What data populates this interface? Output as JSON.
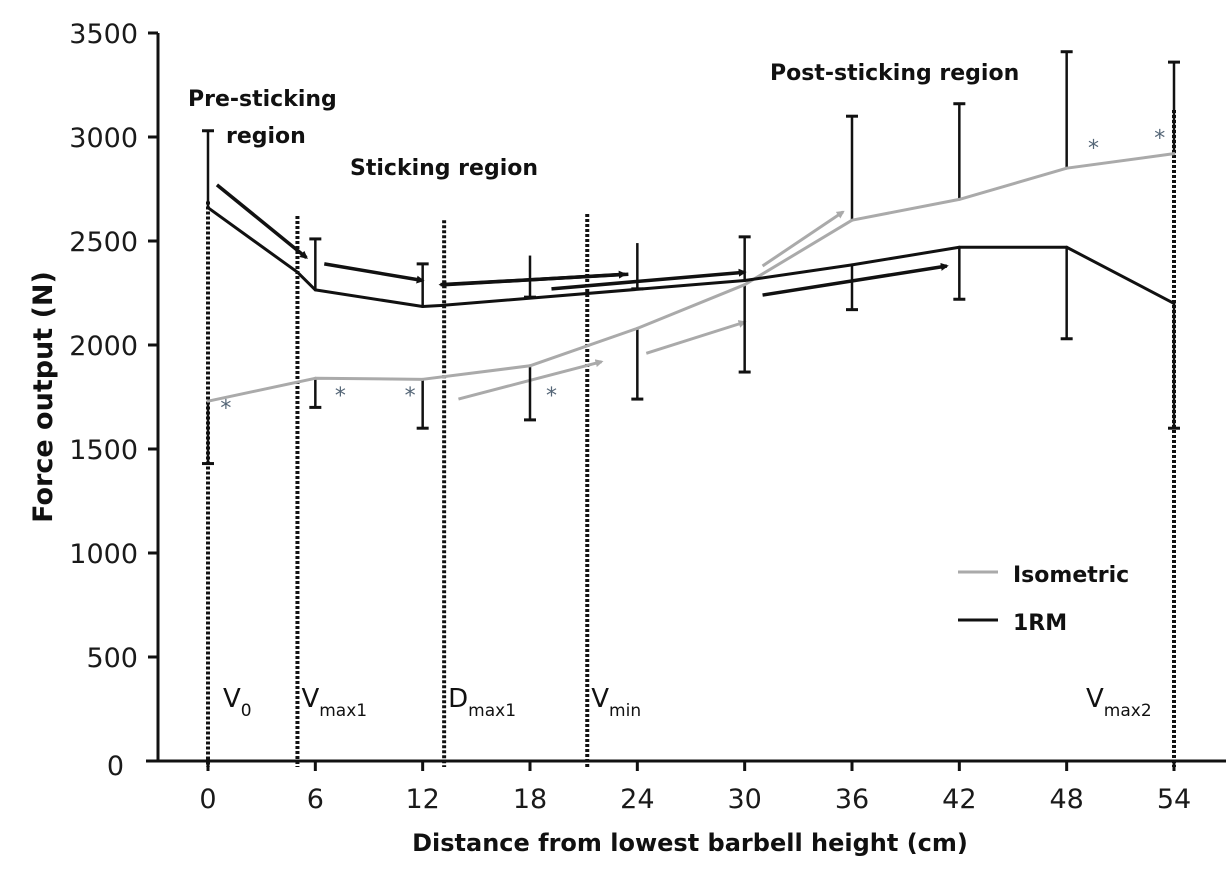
{
  "chart_data": {
    "type": "line",
    "title": "",
    "xlabel": "Distance from lowest barbell height (cm)",
    "ylabel": "Force output (N)",
    "xlim": [
      0,
      54
    ],
    "ylim": [
      0,
      3500
    ],
    "xticks": [
      0,
      6,
      12,
      18,
      24,
      30,
      36,
      42,
      48,
      54
    ],
    "yticks": [
      0,
      500,
      1000,
      1500,
      2000,
      2500,
      3000,
      3500
    ],
    "grid": false,
    "legend_position": "lower-right",
    "series": [
      {
        "name": "Isometric",
        "color": "#aaaaaa",
        "x": [
          0,
          6,
          12,
          18,
          24,
          30,
          36,
          42,
          48,
          54
        ],
        "values": [
          1730,
          1840,
          1835,
          1900,
          2080,
          2290,
          2600,
          2700,
          2850,
          2920
        ],
        "error_bars": [
          {
            "x": 0,
            "low": 1430,
            "high": 1730
          },
          {
            "x": 6,
            "low": 1700,
            "high": 1840
          },
          {
            "x": 12,
            "low": 1600,
            "high": 1835
          },
          {
            "x": 18,
            "low": 1640,
            "high": 1900
          },
          {
            "x": 24,
            "low": 1740,
            "high": 2080
          },
          {
            "x": 30,
            "low": 1870,
            "high": 2290
          },
          {
            "x": 36,
            "low": 2600,
            "high": 3100
          },
          {
            "x": 42,
            "low": 2700,
            "high": 3160
          },
          {
            "x": 48,
            "low": 2850,
            "high": 3410
          },
          {
            "x": 54,
            "low": 2920,
            "high": 3360
          }
        ]
      },
      {
        "name": "1RM",
        "color": "#111111",
        "x": [
          0,
          5,
          6,
          12,
          13,
          30,
          36,
          42,
          48,
          54
        ],
        "values": [
          2660,
          2350,
          2265,
          2185,
          2190,
          2310,
          2385,
          2470,
          2470,
          2200
        ],
        "error_bars": [
          {
            "x": 0,
            "low": 2660,
            "high": 3030
          },
          {
            "x": 6,
            "low": 2265,
            "high": 2510
          },
          {
            "x": 12,
            "low": 2185,
            "high": 2390
          },
          {
            "x": 18,
            "low": 2230,
            "high": 2430
          },
          {
            "x": 24,
            "low": 2270,
            "high": 2490
          },
          {
            "x": 30,
            "low": 2310,
            "high": 2520
          },
          {
            "x": 36,
            "low": 2170,
            "high": 2385
          },
          {
            "x": 42,
            "low": 2220,
            "high": 2470
          },
          {
            "x": 48,
            "low": 2030,
            "high": 2470
          },
          {
            "x": 54,
            "low": 1600,
            "high": 2200
          }
        ]
      }
    ],
    "significance_markers": [
      {
        "x": 1,
        "y": 1660,
        "label": "*"
      },
      {
        "x": 7.4,
        "y": 1720,
        "label": "*"
      },
      {
        "x": 11.3,
        "y": 1720,
        "label": "*"
      },
      {
        "x": 19.2,
        "y": 1720,
        "label": "*"
      },
      {
        "x": 49.5,
        "y": 2910,
        "label": "*"
      },
      {
        "x": 53.2,
        "y": 2960,
        "label": "*"
      }
    ],
    "vertical_markers": [
      {
        "x": 0,
        "label_main": "V",
        "label_sub": "0"
      },
      {
        "x": 5,
        "label_main": "V",
        "label_sub": "max1"
      },
      {
        "x": 13.2,
        "label_main": "D",
        "label_sub": "max1"
      },
      {
        "x": 21.2,
        "label_main": "V",
        "label_sub": "min"
      },
      {
        "x": 54,
        "label_main": "V",
        "label_sub": "max2"
      }
    ],
    "region_labels": [
      {
        "lines": [
          "Pre-sticking",
          "region"
        ]
      },
      {
        "lines": [
          "Sticking region"
        ]
      },
      {
        "lines": [
          "Post-sticking region"
        ]
      }
    ],
    "trend_arrows": [
      {
        "series": "1RM",
        "from": [
          0.5,
          2770
        ],
        "to": [
          5.5,
          2420
        ]
      },
      {
        "series": "1RM",
        "from": [
          6.5,
          2390
        ],
        "to": [
          12,
          2310
        ]
      },
      {
        "series": "1RM",
        "from": [
          23.5,
          2340
        ],
        "to": [
          13,
          2290
        ]
      },
      {
        "series": "1RM",
        "from": [
          13.3,
          2290
        ],
        "to": [
          23.3,
          2340
        ]
      },
      {
        "series": "1RM",
        "from": [
          19.2,
          2270
        ],
        "to": [
          30,
          2350
        ]
      },
      {
        "series": "1RM",
        "from": [
          31,
          2240
        ],
        "to": [
          41.3,
          2380
        ]
      },
      {
        "series": "Isometric",
        "from": [
          14,
          1740
        ],
        "to": [
          22,
          1920
        ]
      },
      {
        "series": "Isometric",
        "from": [
          24.5,
          1960
        ],
        "to": [
          30,
          2110
        ]
      },
      {
        "series": "Isometric",
        "from": [
          31,
          2380
        ],
        "to": [
          35.5,
          2640
        ]
      }
    ]
  }
}
